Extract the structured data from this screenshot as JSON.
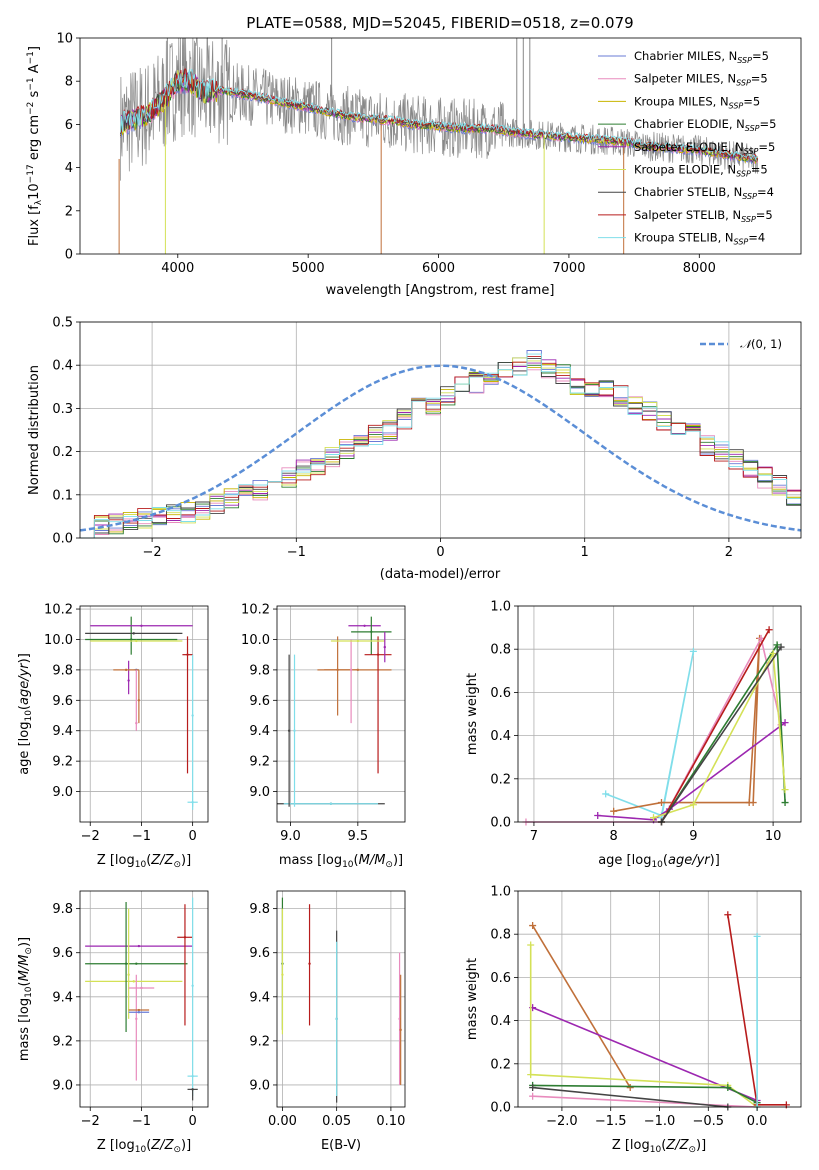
{
  "chart_data": [
    {
      "id": "spectrum",
      "type": "line",
      "title": "PLATE=0588, MJD=52045, FIBERID=0518, z=0.079",
      "xlabel": "wavelength [Angstrom, rest frame]",
      "ylabel": "Flux [f_λ10^-17 erg cm^-2 s^-1 A^-1]",
      "xlim": [
        3250,
        8780
      ],
      "ylim": [
        0,
        10
      ],
      "xticks": [
        4000,
        5000,
        6000,
        7000,
        8000
      ],
      "yticks": [
        0,
        2,
        4,
        6,
        8,
        10
      ],
      "legend_position": "upper-right",
      "legend": [
        {
          "name": "Chabrier MILES, N_SSP=5",
          "color": "#6a7bd6"
        },
        {
          "name": "Salpeter MILES, N_SSP=5",
          "color": "#e88bbd"
        },
        {
          "name": "Kroupa MILES, N_SSP=5",
          "color": "#c8b400"
        },
        {
          "name": "Chabrier ELODIE, N_SSP=5",
          "color": "#2e7d32"
        },
        {
          "name": "Salpeter ELODIE, N_SSP=5",
          "color": "#9c27b0"
        },
        {
          "name": "Kroupa ELODIE, N_SSP=5",
          "color": "#d4e157"
        },
        {
          "name": "Chabrier STELIB, N_SSP=4",
          "color": "#444444"
        },
        {
          "name": "Salpeter STELIB, N_SSP=5",
          "color": "#b71c1c"
        },
        {
          "name": "Kroupa STELIB, N_SSP=4",
          "color": "#80deea"
        }
      ],
      "data_color": "#888888",
      "model_continuum": {
        "x": [
          3560,
          3700,
          3800,
          3900,
          4000,
          4100,
          4200,
          4300,
          4400,
          4600,
          4800,
          5000,
          5200,
          5400,
          5600,
          5800,
          6000,
          6200,
          6400,
          6600,
          6800,
          7000,
          7200,
          7400,
          7600,
          7800,
          8000,
          8200,
          8400
        ],
        "y": [
          6.0,
          6.3,
          6.6,
          7.2,
          8.0,
          8.0,
          7.4,
          7.6,
          7.5,
          7.3,
          7.0,
          6.8,
          6.5,
          6.3,
          6.2,
          6.0,
          5.9,
          5.8,
          5.8,
          5.6,
          5.5,
          5.4,
          5.3,
          5.2,
          5.0,
          4.9,
          4.8,
          4.6,
          4.4
        ]
      }
    },
    {
      "id": "residuals",
      "type": "line",
      "xlabel": "(data-model)/error",
      "ylabel": "Normed distribution",
      "xlim": [
        -2.5,
        2.5
      ],
      "ylim": [
        0,
        0.5
      ],
      "xticks": [
        -2,
        -1,
        0,
        1,
        2
      ],
      "yticks": [
        0.0,
        0.1,
        0.2,
        0.3,
        0.4,
        0.5
      ],
      "legend_label": "N(0,1)",
      "bins": {
        "start": -2.5,
        "width": 0.1
      },
      "histogram_shape": [
        0.025,
        0.028,
        0.032,
        0.038,
        0.045,
        0.05,
        0.055,
        0.06,
        0.068,
        0.08,
        0.09,
        0.1,
        0.112,
        0.13,
        0.14,
        0.158,
        0.17,
        0.19,
        0.205,
        0.225,
        0.24,
        0.25,
        0.275,
        0.3,
        0.31,
        0.33,
        0.35,
        0.36,
        0.38,
        0.39,
        0.395,
        0.41,
        0.39,
        0.38,
        0.355,
        0.345,
        0.34,
        0.33,
        0.31,
        0.295,
        0.27,
        0.255,
        0.24,
        0.215,
        0.2,
        0.18,
        0.165,
        0.14,
        0.12,
        0.1
      ],
      "gaussian": {
        "mean": 0,
        "sigma": 1
      }
    },
    {
      "id": "age_vs_Z",
      "type": "scatter",
      "xlabel": "Z [log10(Z/Z⊙)]",
      "ylabel": "age  [log10(age/yr)]",
      "xlim": [
        -2.2,
        0.3
      ],
      "ylim": [
        8.8,
        10.22
      ],
      "xticks": [
        -2,
        -1,
        0
      ],
      "yticks": [
        9.0,
        9.2,
        9.4,
        9.6,
        9.8,
        10.0,
        10.2
      ],
      "points": [
        {
          "x": -1.25,
          "y": 9.73,
          "xerr": 0.0,
          "yerr_lo": 0.09,
          "yerr_hi": 0.13,
          "color": "#9c27b0"
        },
        {
          "x": -1.1,
          "y": 9.8,
          "xerr": 0.05,
          "yerr_lo": 0.0,
          "yerr_hi": 0.0,
          "color": "#6a7bd6"
        },
        {
          "x": -1.3,
          "y": 9.8,
          "xerr": 0.25,
          "yerr_lo": 0.0,
          "yerr_hi": 0.0,
          "color": "#c0703a"
        },
        {
          "x": -1.1,
          "y": 9.45,
          "xerr": 0.0,
          "yerr_lo": 0.05,
          "yerr_hi": 0.35,
          "color": "#e88bbd"
        },
        {
          "x": -1.05,
          "y": 9.6,
          "xerr": 0.0,
          "yerr_lo": 0.15,
          "yerr_hi": 0.2,
          "color": "#c0703a"
        },
        {
          "x": -1.2,
          "y": 10.0,
          "xerr": 0.9,
          "yerr_lo": 0.1,
          "yerr_hi": 0.15,
          "color": "#2e7d32"
        },
        {
          "x": -1.0,
          "y": 10.09,
          "xerr": 1.0,
          "yerr_lo": 0.0,
          "yerr_hi": 0.0,
          "color": "#9c27b0"
        },
        {
          "x": -1.1,
          "y": 9.99,
          "xerr": 0.9,
          "yerr_lo": 0.0,
          "yerr_hi": 0.0,
          "color": "#d4e157"
        },
        {
          "x": -1.15,
          "y": 10.04,
          "xerr": 0.95,
          "yerr_lo": 0.0,
          "yerr_hi": 0.0,
          "color": "#444444"
        },
        {
          "x": -0.1,
          "y": 9.9,
          "xerr": 0.1,
          "yerr_lo": 0.78,
          "yerr_hi": 0.12,
          "color": "#b71c1c"
        },
        {
          "x": 0.0,
          "y": 9.5,
          "xerr": 0.0,
          "yerr_lo": 0.6,
          "yerr_hi": 0.4,
          "color": "#80deea"
        },
        {
          "x": 0.0,
          "y": 8.93,
          "xerr": 0.1,
          "yerr_lo": 0.05,
          "yerr_hi": 0.0,
          "color": "#80deea"
        }
      ]
    },
    {
      "id": "age_vs_mass",
      "type": "scatter",
      "xlabel": "mass [log10(M/M⊙)]",
      "ylabel": "",
      "xlim": [
        8.9,
        9.85
      ],
      "ylim": [
        8.8,
        10.22
      ],
      "xticks": [
        9.0,
        9.5
      ],
      "yticks": [
        9.0,
        9.2,
        9.4,
        9.6,
        9.8,
        10.0,
        10.2
      ],
      "points": [
        {
          "x": 9.5,
          "y": 9.8,
          "xerr": 0.25,
          "yerr_lo": 0.0,
          "yerr_hi": 0.0,
          "color": "#c0703a"
        },
        {
          "x": 9.35,
          "y": 9.8,
          "xerr": 0.15,
          "yerr_lo": 0.3,
          "yerr_hi": 0.22,
          "color": "#c0703a"
        },
        {
          "x": 9.45,
          "y": 9.8,
          "xerr": 0.0,
          "yerr_lo": 0.35,
          "yerr_hi": 0.2,
          "color": "#e88bbd"
        },
        {
          "x": 9.55,
          "y": 10.09,
          "xerr": 0.12,
          "yerr_lo": 0.0,
          "yerr_hi": 0.0,
          "color": "#9c27b0"
        },
        {
          "x": 9.6,
          "y": 10.05,
          "xerr": 0.15,
          "yerr_lo": 0.15,
          "yerr_hi": 0.1,
          "color": "#2e7d32"
        },
        {
          "x": 9.65,
          "y": 9.9,
          "xerr": 0.1,
          "yerr_lo": 0.78,
          "yerr_hi": 0.12,
          "color": "#b71c1c"
        },
        {
          "x": 9.5,
          "y": 9.99,
          "xerr": 0.2,
          "yerr_lo": 0.0,
          "yerr_hi": 0.0,
          "color": "#d4e157"
        },
        {
          "x": 9.3,
          "y": 8.92,
          "xerr": 0.4,
          "yerr_lo": 0.0,
          "yerr_hi": 0.0,
          "color": "#444444"
        },
        {
          "x": 9.3,
          "y": 8.92,
          "xerr": 0.35,
          "yerr_lo": 0.0,
          "yerr_hi": 0.0,
          "color": "#80deea"
        },
        {
          "x": 8.99,
          "y": 9.4,
          "xerr": 0.0,
          "yerr_lo": 0.5,
          "yerr_hi": 0.5,
          "color": "#444444"
        },
        {
          "x": 9.03,
          "y": 9.4,
          "xerr": 0.0,
          "yerr_lo": 0.5,
          "yerr_hi": 0.5,
          "color": "#80deea"
        },
        {
          "x": 9.7,
          "y": 9.95,
          "xerr": 0.0,
          "yerr_lo": 0.1,
          "yerr_hi": 0.1,
          "color": "#9c27b0"
        }
      ]
    },
    {
      "id": "weight_vs_age",
      "type": "line",
      "xlabel": "age  [log10(age/yr)]",
      "ylabel": "mass weight",
      "xlim": [
        6.8,
        10.35
      ],
      "ylim": [
        0,
        1
      ],
      "xticks": [
        7,
        8,
        9,
        10
      ],
      "yticks": [
        0.0,
        0.2,
        0.4,
        0.6,
        0.8,
        1.0
      ],
      "series": [
        {
          "color": "#80deea",
          "x": [
            7.9,
            8.6,
            9.0,
            8.6
          ],
          "y": [
            0.13,
            0.03,
            0.79,
            0.02
          ]
        },
        {
          "color": "#c0703a",
          "x": [
            8.0,
            8.6,
            9.7,
            9.83,
            9.75
          ],
          "y": [
            0.05,
            0.09,
            0.09,
            0.85,
            0.09
          ]
        },
        {
          "color": "#e88bbd",
          "x": [
            6.9,
            8.6,
            9.85,
            10.1
          ],
          "y": [
            0.0,
            0.0,
            0.85,
            0.45
          ]
        },
        {
          "color": "#9c27b0",
          "x": [
            7.8,
            8.5,
            8.7,
            10.15
          ],
          "y": [
            0.03,
            0.01,
            0.06,
            0.46
          ]
        },
        {
          "color": "#b71c1c",
          "x": [
            8.6,
            9.95
          ],
          "y": [
            0.0,
            0.89
          ]
        },
        {
          "color": "#2e7d32",
          "x": [
            8.6,
            10.05,
            10.15
          ],
          "y": [
            0.0,
            0.82,
            0.09
          ]
        },
        {
          "color": "#d4e157",
          "x": [
            8.5,
            9.0,
            10.0,
            10.15
          ],
          "y": [
            0.02,
            0.08,
            0.78,
            0.15
          ]
        },
        {
          "color": "#444444",
          "x": [
            8.6,
            10.1
          ],
          "y": [
            0.0,
            0.81
          ]
        }
      ]
    },
    {
      "id": "mass_vs_Z",
      "type": "scatter",
      "xlabel": "Z [log10(Z/Z⊙)]",
      "ylabel": "mass [log10(M/M⊙)]",
      "xlim": [
        -2.2,
        0.3
      ],
      "ylim": [
        8.9,
        9.88
      ],
      "xticks": [
        -2,
        -1,
        0
      ],
      "yticks": [
        9.0,
        9.2,
        9.4,
        9.6,
        9.8
      ],
      "points": [
        {
          "x": -1.05,
          "y": 9.63,
          "xerr": 1.05,
          "yerr_lo": 0.0,
          "yerr_hi": 0.0,
          "color": "#9c27b0"
        },
        {
          "x": -1.1,
          "y": 9.55,
          "xerr": 1.0,
          "yerr_lo": 0.0,
          "yerr_hi": 0.0,
          "color": "#2e7d32"
        },
        {
          "x": -1.15,
          "y": 9.47,
          "xerr": 0.95,
          "yerr_lo": 0.0,
          "yerr_hi": 0.0,
          "color": "#d4e157"
        },
        {
          "x": -1.3,
          "y": 9.55,
          "xerr": 0.0,
          "yerr_lo": 0.31,
          "yerr_hi": 0.28,
          "color": "#2e7d32"
        },
        {
          "x": -1.25,
          "y": 9.5,
          "xerr": 0.0,
          "yerr_lo": 0.2,
          "yerr_hi": 0.3,
          "color": "#d4e157"
        },
        {
          "x": -1.0,
          "y": 9.44,
          "xerr": 0.25,
          "yerr_lo": 0.0,
          "yerr_hi": 0.0,
          "color": "#e88bbd"
        },
        {
          "x": -1.1,
          "y": 9.3,
          "xerr": 0.0,
          "yerr_lo": 0.28,
          "yerr_hi": 0.2,
          "color": "#e88bbd"
        },
        {
          "x": -1.05,
          "y": 9.34,
          "xerr": 0.2,
          "yerr_lo": 0.0,
          "yerr_hi": 0.0,
          "color": "#c0703a"
        },
        {
          "x": -1.05,
          "y": 9.33,
          "xerr": 0.2,
          "yerr_lo": 0.0,
          "yerr_hi": 0.0,
          "color": "#6a7bd6"
        },
        {
          "x": -0.15,
          "y": 9.67,
          "xerr": 0.15,
          "yerr_lo": 0.4,
          "yerr_hi": 0.15,
          "color": "#b71c1c"
        },
        {
          "x": 0.0,
          "y": 9.04,
          "xerr": 0.1,
          "yerr_lo": 0.0,
          "yerr_hi": 0.0,
          "color": "#80deea"
        },
        {
          "x": 0.0,
          "y": 9.45,
          "xerr": 0.0,
          "yerr_lo": 0.5,
          "yerr_hi": 0.4,
          "color": "#80deea"
        },
        {
          "x": 0.0,
          "y": 8.98,
          "xerr": 0.1,
          "yerr_lo": 0.05,
          "yerr_hi": 0.0,
          "color": "#444444"
        }
      ]
    },
    {
      "id": "mass_vs_EBV",
      "type": "scatter",
      "xlabel": "E(B-V)",
      "ylabel": "",
      "xlim": [
        -0.005,
        0.113
      ],
      "ylim": [
        8.9,
        9.88
      ],
      "xticks": [
        0.0,
        0.05,
        0.1
      ],
      "yticks": [
        9.0,
        9.2,
        9.4,
        9.6,
        9.8
      ],
      "points": [
        {
          "x": 0.0,
          "y": 9.55,
          "xerr": 0.0,
          "yerr_lo": 0.3,
          "yerr_hi": 0.3,
          "color": "#2e7d32"
        },
        {
          "x": 0.0,
          "y": 9.5,
          "xerr": 0.0,
          "yerr_lo": 0.27,
          "yerr_hi": 0.3,
          "color": "#d4e157"
        },
        {
          "x": 0.025,
          "y": 9.55,
          "xerr": 0.0,
          "yerr_lo": 0.28,
          "yerr_hi": 0.27,
          "color": "#b71c1c"
        },
        {
          "x": 0.05,
          "y": 9.3,
          "xerr": 0.0,
          "yerr_lo": 0.38,
          "yerr_hi": 0.4,
          "color": "#444444"
        },
        {
          "x": 0.05,
          "y": 9.3,
          "xerr": 0.0,
          "yerr_lo": 0.35,
          "yerr_hi": 0.35,
          "color": "#80deea"
        },
        {
          "x": 0.108,
          "y": 9.3,
          "xerr": 0.0,
          "yerr_lo": 0.3,
          "yerr_hi": 0.3,
          "color": "#e88bbd"
        },
        {
          "x": 0.109,
          "y": 9.25,
          "xerr": 0.0,
          "yerr_lo": 0.25,
          "yerr_hi": 0.25,
          "color": "#c0703a"
        }
      ]
    },
    {
      "id": "weight_vs_Z",
      "type": "line",
      "xlabel": "Z [log10(Z/Z⊙)]",
      "ylabel": "mass weight",
      "xlim": [
        -2.45,
        0.45
      ],
      "ylim": [
        0,
        1
      ],
      "xticks": [
        -2.0,
        -1.5,
        -1.0,
        -0.5,
        0.0
      ],
      "yticks": [
        0.0,
        0.2,
        0.4,
        0.6,
        0.8,
        1.0
      ],
      "series": [
        {
          "color": "#c0703a",
          "x": [
            -2.3,
            -1.3
          ],
          "y": [
            0.84,
            0.09
          ]
        },
        {
          "color": "#e88bbd",
          "x": [
            -2.3,
            0.0
          ],
          "y": [
            0.05,
            0.0
          ]
        },
        {
          "color": "#9c27b0",
          "x": [
            -2.3,
            0.0
          ],
          "y": [
            0.46,
            0.03
          ]
        },
        {
          "color": "#d4e157",
          "x": [
            -2.32,
            -2.32,
            -0.3,
            0.0
          ],
          "y": [
            0.75,
            0.15,
            0.1,
            0.0
          ]
        },
        {
          "color": "#2e7d32",
          "x": [
            -2.3,
            -0.3,
            0.0
          ],
          "y": [
            0.1,
            0.09,
            0.02
          ]
        },
        {
          "color": "#444444",
          "x": [
            -2.3,
            -0.3
          ],
          "y": [
            0.09,
            0.0
          ]
        },
        {
          "color": "#b71c1c",
          "x": [
            -0.3,
            0.0,
            0.3
          ],
          "y": [
            0.89,
            0.01,
            0.01
          ]
        },
        {
          "color": "#80deea",
          "x": [
            0.0,
            0.0
          ],
          "y": [
            0.79,
            0.0
          ]
        }
      ]
    }
  ]
}
